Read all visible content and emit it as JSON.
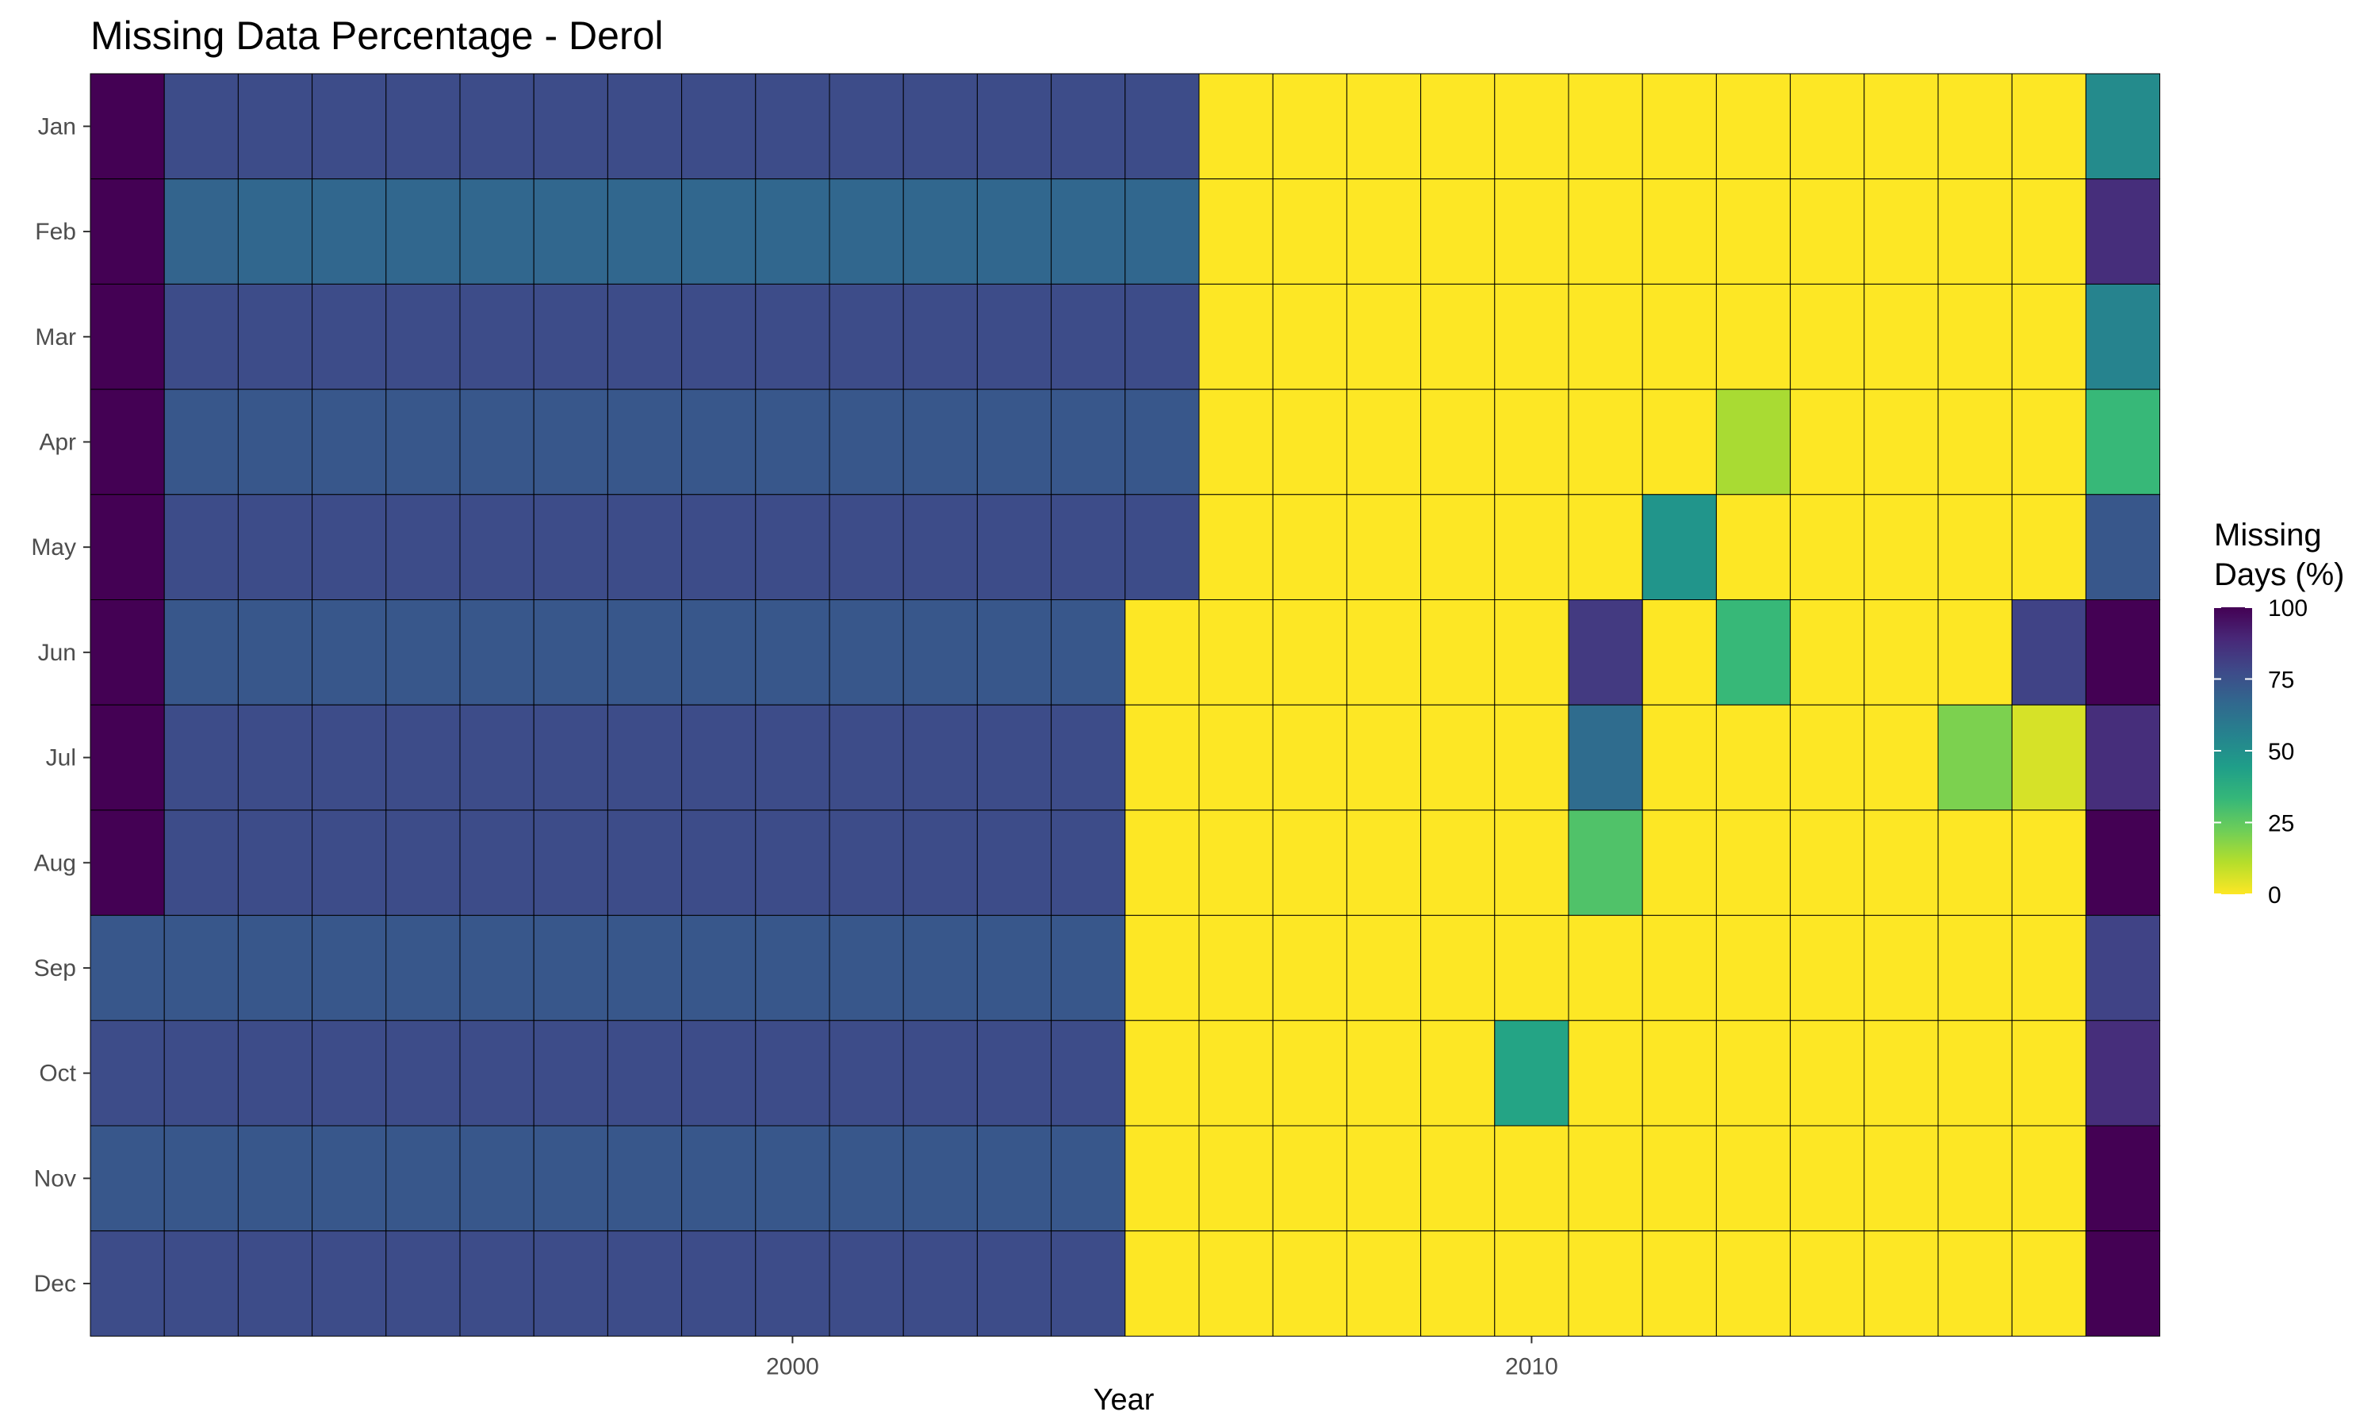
{
  "chart_data": {
    "type": "heatmap",
    "title": "Missing Data Percentage - Derol",
    "xlabel": "Year",
    "ylabel": "",
    "x": [
      1991,
      1992,
      1993,
      1994,
      1995,
      1996,
      1997,
      1998,
      1999,
      2000,
      2001,
      2002,
      2003,
      2004,
      2005,
      2006,
      2007,
      2008,
      2009,
      2010,
      2011,
      2012,
      2013,
      2014,
      2015,
      2016,
      2017,
      2018
    ],
    "x_ticks": [
      2000,
      2010
    ],
    "y_categories": [
      "Jan",
      "Feb",
      "Mar",
      "Apr",
      "May",
      "Jun",
      "Jul",
      "Aug",
      "Sep",
      "Oct",
      "Nov",
      "Dec"
    ],
    "values": [
      [
        100,
        77,
        77,
        77,
        77,
        77,
        77,
        77,
        77,
        77,
        77,
        77,
        77,
        77,
        77,
        0,
        0,
        0,
        0,
        0,
        0,
        0,
        0,
        0,
        0,
        0,
        0,
        52
      ],
      [
        100,
        68,
        67,
        67,
        67,
        67,
        67,
        67,
        67,
        67,
        67,
        67,
        67,
        67,
        67,
        0,
        0,
        0,
        0,
        0,
        0,
        0,
        0,
        0,
        0,
        0,
        0,
        87
      ],
      [
        100,
        77,
        77,
        77,
        77,
        77,
        77,
        77,
        77,
        77,
        77,
        77,
        77,
        77,
        77,
        0,
        0,
        0,
        0,
        0,
        0,
        0,
        0,
        0,
        0,
        0,
        0,
        55
      ],
      [
        100,
        73,
        73,
        73,
        73,
        73,
        73,
        73,
        73,
        73,
        73,
        73,
        73,
        73,
        73,
        0,
        0,
        0,
        0,
        0,
        0,
        0,
        13,
        0,
        0,
        0,
        0,
        33
      ],
      [
        100,
        77,
        77,
        77,
        77,
        77,
        77,
        77,
        77,
        77,
        77,
        77,
        77,
        77,
        77,
        0,
        0,
        0,
        0,
        0,
        0,
        48,
        0,
        0,
        0,
        0,
        0,
        73
      ],
      [
        100,
        73,
        73,
        73,
        73,
        73,
        73,
        73,
        73,
        73,
        73,
        73,
        73,
        73,
        0,
        0,
        0,
        0,
        0,
        0,
        83,
        0,
        33,
        0,
        0,
        0,
        80,
        100
      ],
      [
        100,
        77,
        77,
        77,
        77,
        77,
        77,
        77,
        77,
        77,
        77,
        77,
        77,
        77,
        0,
        0,
        0,
        0,
        0,
        0,
        65,
        0,
        0,
        0,
        0,
        20,
        6,
        87
      ],
      [
        100,
        77,
        77,
        77,
        77,
        77,
        77,
        77,
        77,
        77,
        77,
        77,
        77,
        77,
        0,
        0,
        0,
        0,
        0,
        0,
        28,
        0,
        0,
        0,
        0,
        0,
        0,
        100
      ],
      [
        73,
        73,
        73,
        73,
        73,
        73,
        73,
        73,
        73,
        73,
        73,
        73,
        73,
        73,
        0,
        0,
        0,
        0,
        0,
        0,
        0,
        0,
        0,
        0,
        0,
        0,
        0,
        80
      ],
      [
        77,
        77,
        77,
        77,
        77,
        77,
        77,
        77,
        77,
        77,
        77,
        77,
        77,
        77,
        0,
        0,
        0,
        0,
        0,
        42,
        0,
        0,
        0,
        0,
        0,
        0,
        0,
        87
      ],
      [
        73,
        73,
        73,
        73,
        73,
        73,
        73,
        73,
        73,
        73,
        73,
        73,
        73,
        73,
        0,
        0,
        0,
        0,
        0,
        0,
        0,
        0,
        0,
        0,
        0,
        0,
        0,
        100
      ],
      [
        77,
        77,
        77,
        77,
        77,
        77,
        77,
        77,
        77,
        77,
        77,
        77,
        77,
        77,
        0,
        0,
        0,
        0,
        0,
        0,
        0,
        0,
        0,
        0,
        0,
        0,
        0,
        100
      ]
    ],
    "color_scale": {
      "name": "viridis",
      "reversed": true,
      "domain": [
        0,
        100
      ],
      "stops": [
        "#440154",
        "#482878",
        "#3e4a89",
        "#31688e",
        "#26828e",
        "#1f9e89",
        "#35b779",
        "#6ece58",
        "#b5de2b",
        "#fde725"
      ]
    },
    "legend": {
      "title_line1": "Missing",
      "title_line2": "Days (%)",
      "ticks": [
        100,
        75,
        50,
        25,
        0
      ],
      "placement": "right"
    },
    "grid": false
  }
}
